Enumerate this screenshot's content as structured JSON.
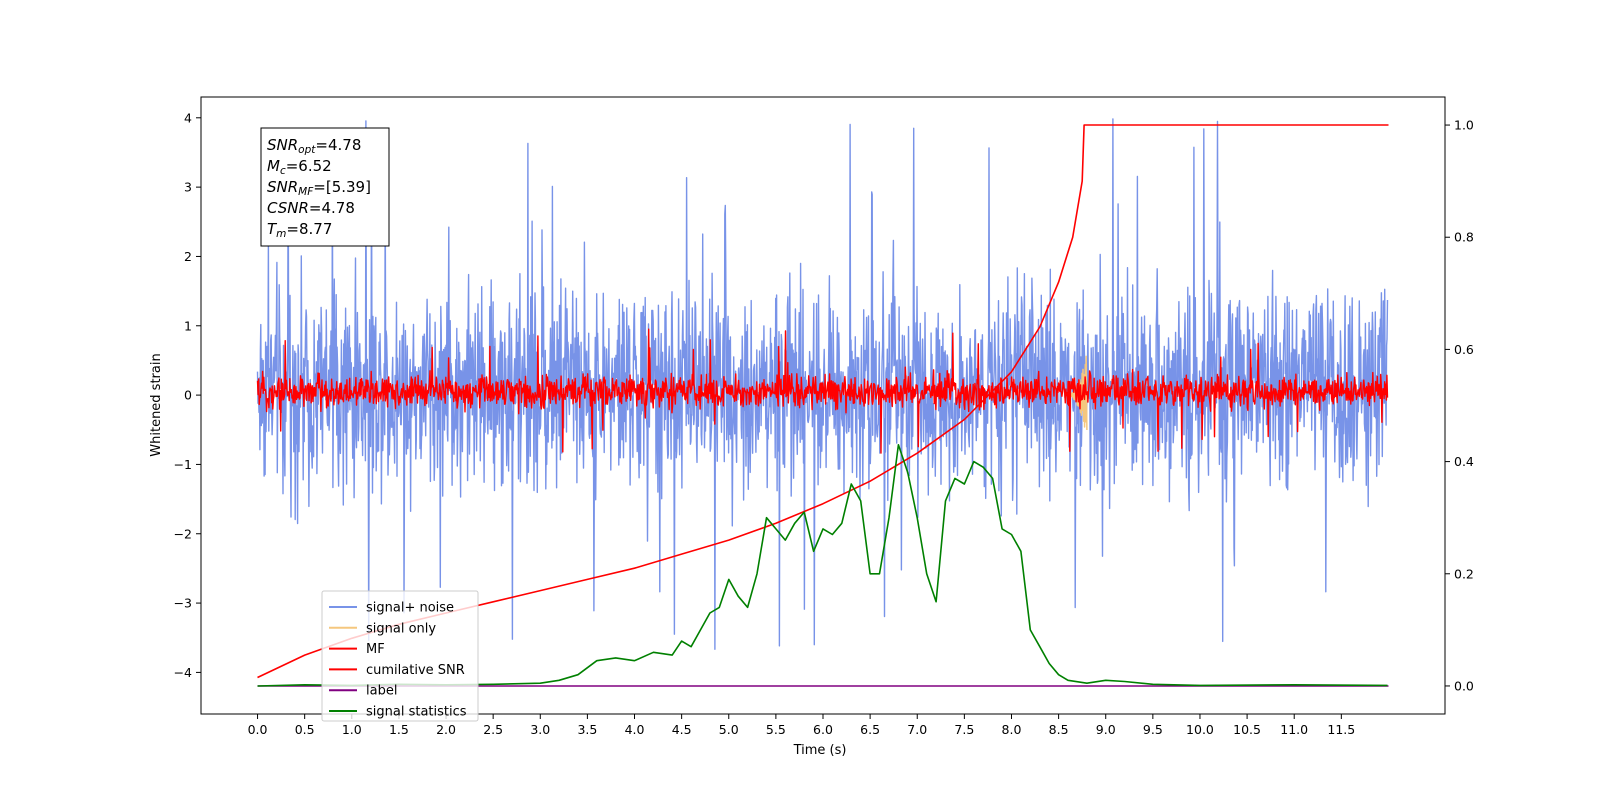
{
  "chart_data": {
    "type": "line",
    "title": "",
    "xlabel": "Time (s)",
    "ylabel": "Whitened strain",
    "xlim": [
      -0.6,
      12.6
    ],
    "ylim": [
      -4.6,
      4.3
    ],
    "y2lim": [
      -0.05,
      1.05
    ],
    "grid": false,
    "legend_position": "lower-left",
    "x_ticks": [
      "0.0",
      "0.5",
      "1.0",
      "1.5",
      "2.0",
      "2.5",
      "3.0",
      "3.5",
      "4.0",
      "4.5",
      "5.0",
      "5.5",
      "6.0",
      "6.5",
      "7.0",
      "7.5",
      "8.0",
      "8.5",
      "9.0",
      "9.5",
      "10.0",
      "10.5",
      "11.0",
      "11.5"
    ],
    "y_ticks": [
      "4",
      "3",
      "2",
      "1",
      "0",
      "−1",
      "−2",
      "−3",
      "−4"
    ],
    "y2_ticks": [
      "1.0",
      "0.8",
      "0.6",
      "0.4",
      "0.2",
      "0.0"
    ],
    "annotation": {
      "lines": [
        {
          "base": "SNR",
          "sub": "opt",
          "value": "=4.78"
        },
        {
          "base": "M",
          "sub": "c",
          "value": "=6.52"
        },
        {
          "base": "SNR",
          "sub": "MF",
          "value": "=[5.39]"
        },
        {
          "base": "CSNR",
          "sub": "",
          "value": "=4.78"
        },
        {
          "base": "T",
          "sub": "m",
          "value": "=8.77"
        }
      ]
    },
    "series": [
      {
        "name": "signal+ noise",
        "color": "#7893e8",
        "axis": "left",
        "kind": "noise",
        "x_range": [
          0,
          11.99
        ],
        "band": [
          -2.0,
          2.2
        ],
        "peak_abs": 3.9
      },
      {
        "name": "signal only",
        "color": "#f5c77e",
        "axis": "left",
        "kind": "chirp",
        "x_range": [
          8.6,
          8.8
        ],
        "peak_abs": 0.6
      },
      {
        "name": "MF",
        "color": "#ff0000",
        "axis": "left",
        "kind": "noise",
        "x_range": [
          0,
          11.99
        ],
        "band": [
          -0.3,
          0.4
        ],
        "peak_abs": 0.9
      },
      {
        "name": "cumilative SNR",
        "color": "#ff0000",
        "axis": "right",
        "x": [
          0.0,
          0.5,
          1.0,
          1.5,
          2.0,
          2.5,
          3.0,
          3.5,
          4.0,
          4.5,
          5.0,
          5.5,
          6.0,
          6.5,
          7.0,
          7.5,
          8.0,
          8.3,
          8.5,
          8.65,
          8.75,
          8.77,
          9.0,
          10.0,
          11.0,
          12.0
        ],
        "y": [
          0.015,
          0.055,
          0.085,
          0.11,
          0.13,
          0.15,
          0.17,
          0.19,
          0.21,
          0.235,
          0.26,
          0.29,
          0.325,
          0.365,
          0.415,
          0.475,
          0.56,
          0.64,
          0.72,
          0.8,
          0.9,
          1.0,
          1.0,
          1.0,
          1.0,
          1.0
        ]
      },
      {
        "name": "label",
        "color": "#800080",
        "axis": "right",
        "x": [
          0.0,
          12.0
        ],
        "y": [
          0.0,
          0.0
        ]
      },
      {
        "name": "signal statistics",
        "color": "#008000",
        "axis": "right",
        "x": [
          0.0,
          0.5,
          1.0,
          1.5,
          2.0,
          2.5,
          3.0,
          3.2,
          3.4,
          3.6,
          3.8,
          4.0,
          4.2,
          4.4,
          4.5,
          4.6,
          4.8,
          4.9,
          5.0,
          5.1,
          5.2,
          5.3,
          5.4,
          5.5,
          5.6,
          5.7,
          5.8,
          5.9,
          6.0,
          6.1,
          6.2,
          6.3,
          6.4,
          6.5,
          6.6,
          6.7,
          6.8,
          6.9,
          7.0,
          7.1,
          7.2,
          7.3,
          7.4,
          7.5,
          7.6,
          7.7,
          7.8,
          7.9,
          8.0,
          8.1,
          8.2,
          8.3,
          8.4,
          8.5,
          8.6,
          8.8,
          9.0,
          9.2,
          9.5,
          10.0,
          11.0,
          11.99
        ],
        "y": [
          0.0,
          0.002,
          0.001,
          0.003,
          0.002,
          0.003,
          0.005,
          0.01,
          0.02,
          0.045,
          0.05,
          0.045,
          0.06,
          0.055,
          0.08,
          0.07,
          0.13,
          0.14,
          0.19,
          0.16,
          0.14,
          0.2,
          0.3,
          0.28,
          0.26,
          0.29,
          0.31,
          0.24,
          0.28,
          0.27,
          0.29,
          0.36,
          0.33,
          0.2,
          0.2,
          0.3,
          0.43,
          0.38,
          0.3,
          0.2,
          0.15,
          0.33,
          0.37,
          0.36,
          0.4,
          0.39,
          0.37,
          0.28,
          0.27,
          0.24,
          0.1,
          0.07,
          0.04,
          0.02,
          0.01,
          0.005,
          0.01,
          0.008,
          0.003,
          0.001,
          0.002,
          0.001
        ]
      }
    ]
  }
}
